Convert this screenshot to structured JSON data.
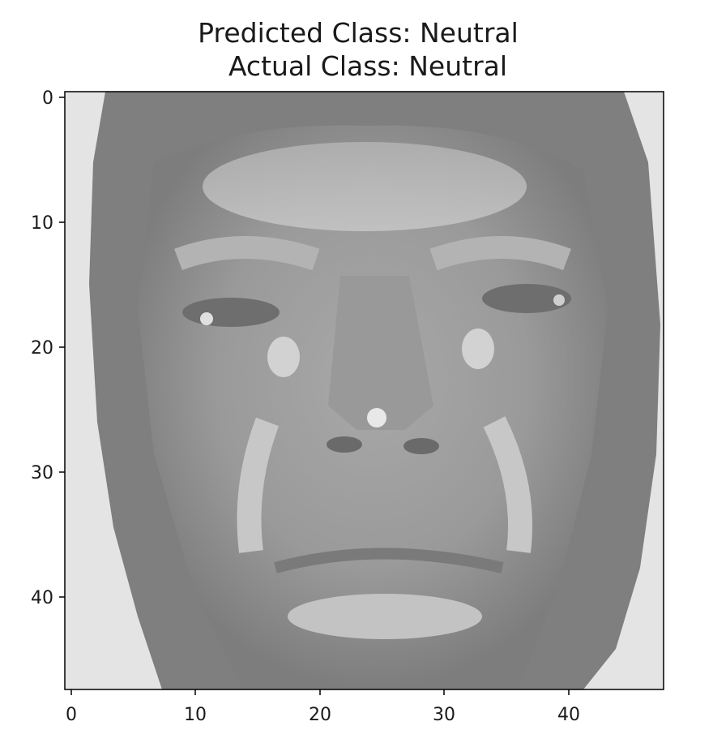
{
  "figure": {
    "title_line1": "Predicted Class: Neutral",
    "title_line2": "Actual Class: Neutral",
    "image_caption": "grayscale face image (48x48 pixels)",
    "x_ticks": [
      "0",
      "10",
      "20",
      "30",
      "40"
    ],
    "y_ticks": [
      "0",
      "10",
      "20",
      "30",
      "40"
    ],
    "colormap": "gray"
  }
}
